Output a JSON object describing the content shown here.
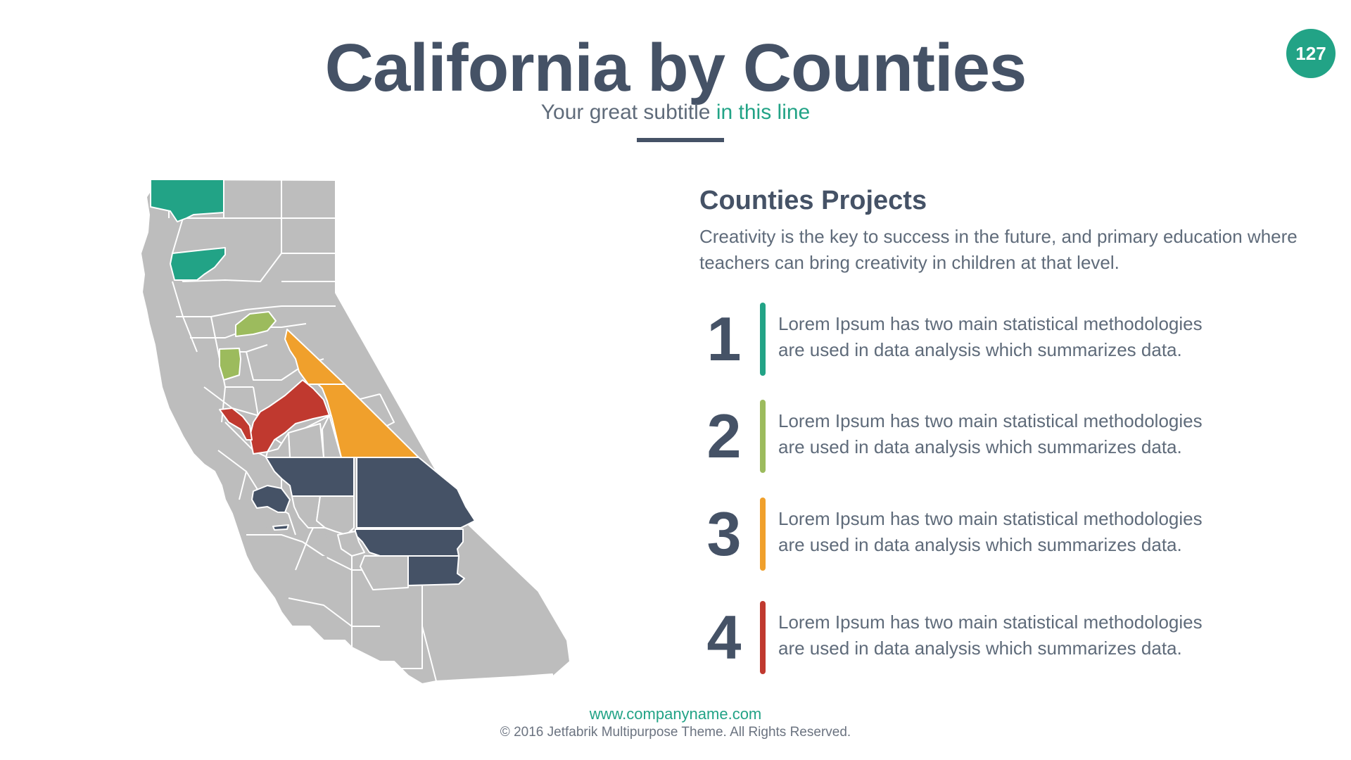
{
  "slide": {
    "title": "California by Counties",
    "subtitle_main": "Your great subtitle ",
    "subtitle_accent": "in this line",
    "page_number": "127"
  },
  "section": {
    "title": "Counties Projects",
    "description": "Creativity is the key to success in the future, and primary education where teachers can bring creativity in children at that level."
  },
  "items": [
    {
      "number": "1",
      "line1": "Lorem Ipsum has two main statistical methodologies",
      "line2": "are used in data analysis which summarizes data.",
      "color": "#22a386"
    },
    {
      "number": "2",
      "line1": "Lorem Ipsum has two main statistical methodologies",
      "line2": "are used in data analysis which summarizes data.",
      "color": "#9cbb5d"
    },
    {
      "number": "3",
      "line1": "Lorem Ipsum has two main statistical methodologies",
      "line2": "are used in data analysis which summarizes data.",
      "color": "#f0a02c"
    },
    {
      "number": "4",
      "line1": "Lorem Ipsum has two main statistical methodologies",
      "line2": "are used in data analysis which summarizes data.",
      "color": "#c0392f"
    }
  ],
  "map": {
    "base_color": "#bdbdbd",
    "border_color": "#ffffff",
    "group_colors": [
      "#22a386",
      "#9cbb5d",
      "#f0a02c",
      "#c0392f",
      "#455266"
    ]
  },
  "footer": {
    "url": "www.companyname.com",
    "copyright": "© 2016 Jetfabrik Multipurpose Theme. All Rights Reserved."
  },
  "theme": {
    "primary": "#455266",
    "accent": "#22a386"
  }
}
